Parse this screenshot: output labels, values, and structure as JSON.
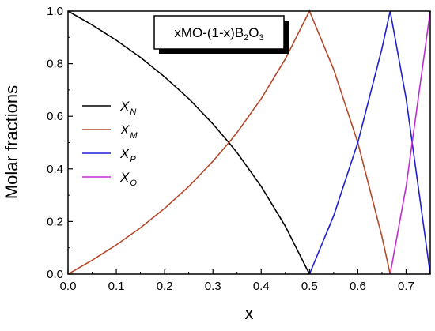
{
  "chart_data": {
    "type": "line",
    "xlabel": "x",
    "ylabel": "Molar fractions",
    "xlim": [
      0.0,
      0.75
    ],
    "ylim": [
      0.0,
      1.0
    ],
    "xticks": [
      "0.0",
      "0.1",
      "0.2",
      "0.3",
      "0.4",
      "0.5",
      "0.6",
      "0.7"
    ],
    "yticks": [
      "0.0",
      "0.2",
      "0.4",
      "0.6",
      "0.8",
      "1.0"
    ],
    "inset_label": {
      "parts": [
        {
          "text": "xMO-(1-x)B",
          "sub": false
        },
        {
          "text": "2",
          "sub": true
        },
        {
          "text": "O",
          "sub": false
        },
        {
          "text": "3",
          "sub": true
        }
      ]
    },
    "legend_position": "left",
    "grid": false,
    "series": [
      {
        "name": "X",
        "subscript": "N",
        "color": "#000000",
        "x": [
          0.0,
          0.05,
          0.1,
          0.15,
          0.2,
          0.25,
          0.3,
          0.333,
          0.35,
          0.4,
          0.45,
          0.5
        ],
        "y": [
          1.0,
          0.947,
          0.889,
          0.824,
          0.75,
          0.667,
          0.571,
          0.5,
          0.462,
          0.333,
          0.182,
          0.0
        ]
      },
      {
        "name": "X",
        "subscript": "M",
        "color": "#b5482a",
        "x": [
          0.0,
          0.05,
          0.1,
          0.15,
          0.2,
          0.25,
          0.3,
          0.333,
          0.35,
          0.4,
          0.45,
          0.5,
          0.55,
          0.6,
          0.65,
          0.667
        ],
        "y": [
          0.0,
          0.053,
          0.111,
          0.176,
          0.25,
          0.333,
          0.429,
          0.5,
          0.538,
          0.667,
          0.818,
          1.0,
          0.778,
          0.5,
          0.143,
          0.0
        ]
      },
      {
        "name": "X",
        "subscript": "P",
        "color": "#1f1fd0",
        "x": [
          0.5,
          0.55,
          0.6,
          0.65,
          0.667,
          0.7,
          0.75
        ],
        "y": [
          0.0,
          0.222,
          0.5,
          0.857,
          1.0,
          0.667,
          0.0
        ]
      },
      {
        "name": "X",
        "subscript": "O",
        "color": "#c02cd0",
        "x": [
          0.667,
          0.7,
          0.75
        ],
        "y": [
          0.0,
          0.333,
          1.0
        ]
      }
    ]
  }
}
